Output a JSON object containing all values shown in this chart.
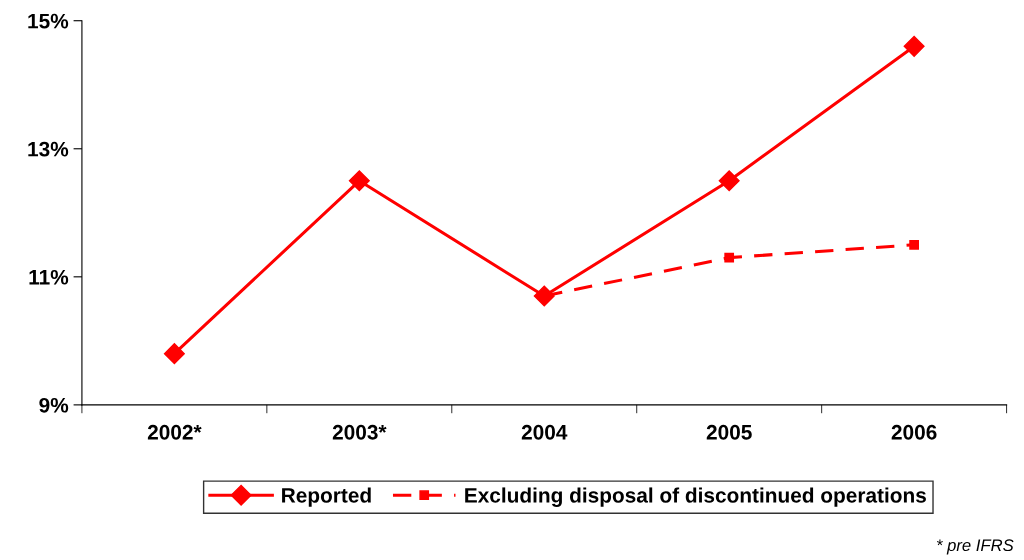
{
  "chart_data": {
    "type": "line",
    "categories": [
      "2002*",
      "2003*",
      "2004",
      "2005",
      "2006"
    ],
    "series": [
      {
        "name": "Reported",
        "color": "#ff0000",
        "marker": "diamond",
        "line_style": "solid",
        "values": [
          9.8,
          12.5,
          10.7,
          12.5,
          14.6
        ]
      },
      {
        "name": "Excluding disposal of discontinued operations",
        "color": "#ff0000",
        "marker": "square",
        "line_style": "dashed",
        "values": [
          null,
          null,
          10.7,
          11.3,
          11.5
        ]
      }
    ],
    "ylim": [
      9,
      15
    ],
    "yticks": [
      {
        "value": 9,
        "label": "9%"
      },
      {
        "value": 11,
        "label": "11%"
      },
      {
        "value": 13,
        "label": "13%"
      },
      {
        "value": 15,
        "label": "15%"
      }
    ],
    "grid": false,
    "legend": "bottom",
    "annotations": [
      "* pre IFRS"
    ]
  }
}
